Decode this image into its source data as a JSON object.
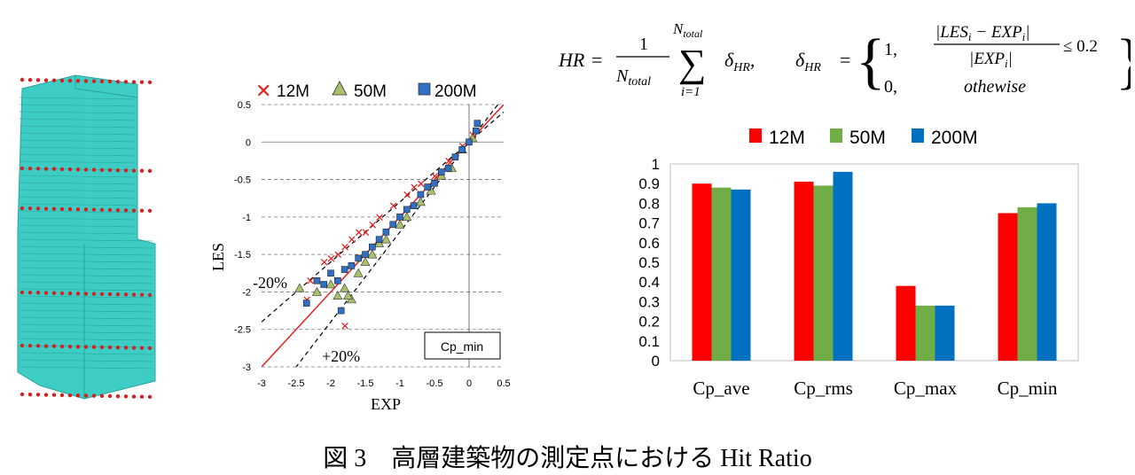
{
  "formula": {
    "hr_lhs": "HR",
    "numerator": "1",
    "denominator": "N",
    "denominator_sub": "total",
    "sum_top": "N",
    "sum_top_sub": "total",
    "sum_bottom": "i=1",
    "delta_term": "δ",
    "delta_sub": "HR",
    "case1_value": "1,",
    "case1_cond_num": "|LES",
    "case1_cond_num_sub": "i",
    "case1_cond_minus": " − EXP",
    "case1_cond_minus_sub": "i",
    "case1_cond_close": "|",
    "case1_cond_den": "|EXP",
    "case1_cond_den_sub": "i",
    "case1_cond_den_close": "|",
    "case1_le": "≤ 0.2",
    "case2_value": "0,",
    "case2_cond": "othewise"
  },
  "caption": "図 3　高層建築物の測定点における Hit Ratio",
  "chart_data": [
    {
      "type": "scatter",
      "xlabel": "EXP",
      "ylabel": "LES",
      "xlim": [
        -3,
        0.5
      ],
      "ylim": [
        -3,
        0.5
      ],
      "xticks": [
        "-3",
        "-2.5",
        "-2",
        "-1.5",
        "-1",
        "-0.5",
        "0",
        "0.5"
      ],
      "yticks": [
        "0.5",
        "0",
        "-0.5",
        "-1",
        "-1.5",
        "-2",
        "-2.5",
        "-3"
      ],
      "legend": [
        "12M",
        "50M",
        "200M"
      ],
      "legend_position": "top",
      "annotations": [
        "-20%",
        "+20%"
      ],
      "box_label": "Cp_min",
      "colors": {
        "s12": "#e52020",
        "s50": "#a9c26a",
        "s200": "#2f6fc4"
      },
      "series": [
        {
          "name": "12M",
          "points": [
            [
              -2.3,
              -1.85
            ],
            [
              -2.1,
              -1.6
            ],
            [
              -2.0,
              -1.55
            ],
            [
              -1.9,
              -1.5
            ],
            [
              -1.8,
              -1.4
            ],
            [
              -1.7,
              -1.3
            ],
            [
              -1.6,
              -1.2
            ],
            [
              -1.5,
              -1.2
            ],
            [
              -1.4,
              -1.1
            ],
            [
              -1.3,
              -1.0
            ],
            [
              -1.1,
              -0.85
            ],
            [
              -0.9,
              -0.7
            ],
            [
              -0.8,
              -0.6
            ],
            [
              -0.7,
              -0.55
            ],
            [
              -0.5,
              -0.45
            ],
            [
              -0.3,
              -0.25
            ],
            [
              -0.1,
              -0.05
            ],
            [
              0.05,
              0.1
            ],
            [
              -1.8,
              -2.45
            ],
            [
              -2.35,
              -2.1
            ]
          ]
        },
        {
          "name": "50M",
          "points": [
            [
              -2.45,
              -1.95
            ],
            [
              -2.2,
              -2.0
            ],
            [
              -2.0,
              -1.9
            ],
            [
              -1.8,
              -1.95
            ],
            [
              -1.7,
              -2.1
            ],
            [
              -1.6,
              -1.75
            ],
            [
              -1.5,
              -1.6
            ],
            [
              -1.4,
              -1.5
            ],
            [
              -1.3,
              -1.35
            ],
            [
              -1.2,
              -1.3
            ],
            [
              -1.0,
              -1.1
            ],
            [
              -0.9,
              -1.0
            ],
            [
              -0.7,
              -0.8
            ],
            [
              -0.55,
              -0.65
            ],
            [
              -0.4,
              -0.45
            ],
            [
              -0.25,
              -0.35
            ],
            [
              -0.1,
              -0.1
            ],
            [
              0.05,
              0.05
            ],
            [
              -1.75,
              -2.05
            ],
            [
              -1.9,
              -2.05
            ]
          ]
        },
        {
          "name": "200M",
          "points": [
            [
              -2.2,
              -1.85
            ],
            [
              -2.1,
              -1.9
            ],
            [
              -2.0,
              -1.75
            ],
            [
              -1.9,
              -1.85
            ],
            [
              -1.8,
              -1.7
            ],
            [
              -1.7,
              -1.65
            ],
            [
              -1.6,
              -1.55
            ],
            [
              -1.5,
              -1.5
            ],
            [
              -1.4,
              -1.4
            ],
            [
              -1.3,
              -1.3
            ],
            [
              -1.2,
              -1.2
            ],
            [
              -1.1,
              -1.1
            ],
            [
              -1.0,
              -1.0
            ],
            [
              -0.9,
              -0.9
            ],
            [
              -0.8,
              -0.85
            ],
            [
              -0.7,
              -0.7
            ],
            [
              -0.6,
              -0.6
            ],
            [
              -0.5,
              -0.55
            ],
            [
              -0.4,
              -0.4
            ],
            [
              -0.3,
              -0.35
            ],
            [
              -0.2,
              -0.2
            ],
            [
              -0.1,
              -0.1
            ],
            [
              0.0,
              0.0
            ],
            [
              0.1,
              0.15
            ],
            [
              0.12,
              0.25
            ],
            [
              -1.85,
              -2.25
            ],
            [
              -2.35,
              -2.15
            ]
          ]
        }
      ]
    },
    {
      "type": "bar",
      "categories": [
        "Cp_ave",
        "Cp_rms",
        "Cp_max",
        "Cp_min"
      ],
      "ylim": [
        0,
        1
      ],
      "yticks": [
        "0",
        "0.1",
        "0.2",
        "0.3",
        "0.4",
        "0.5",
        "0.6",
        "0.7",
        "0.8",
        "0.9",
        "1"
      ],
      "legend_position": "top",
      "series": [
        {
          "name": "12M",
          "color": "#ff0000",
          "values": [
            0.9,
            0.91,
            0.38,
            0.75
          ]
        },
        {
          "name": "50M",
          "color": "#70ad47",
          "values": [
            0.88,
            0.89,
            0.28,
            0.78
          ]
        },
        {
          "name": "200M",
          "color": "#0070c0",
          "values": [
            0.87,
            0.96,
            0.28,
            0.8
          ]
        }
      ]
    }
  ]
}
